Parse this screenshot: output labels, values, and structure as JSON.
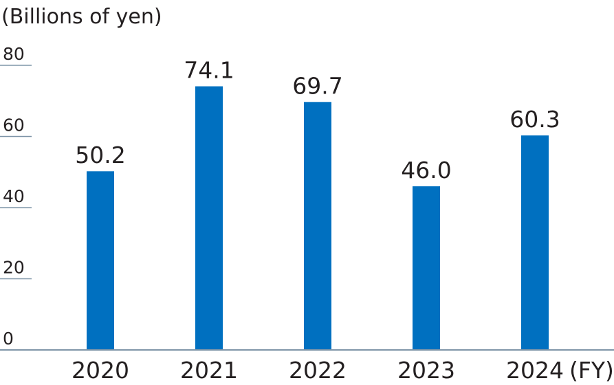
{
  "chart_data": {
    "type": "bar",
    "title": "",
    "ylabel": "(Billions of yen)",
    "xlabel": "(FY)",
    "categories": [
      "2020",
      "2021",
      "2022",
      "2023",
      "2024"
    ],
    "values": [
      50.2,
      74.1,
      69.7,
      46.0,
      60.3
    ],
    "value_labels": [
      "50.2",
      "74.1",
      "69.7",
      "46.0",
      "60.3"
    ],
    "ylim": [
      0,
      80
    ],
    "yticks": [
      "0",
      "20",
      "40",
      "60",
      "80"
    ],
    "bar_color": "#0070c0",
    "axis_color": "#7f95a8"
  }
}
